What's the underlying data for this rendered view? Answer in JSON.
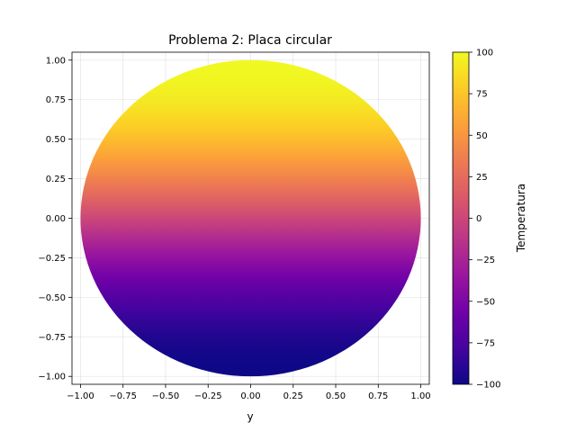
{
  "chart_data": {
    "type": "heatmap",
    "title": "Problema 2: Placa circular",
    "xlabel": "y",
    "ylabel": "",
    "xlim": [
      -1.05,
      1.05
    ],
    "ylim": [
      -1.05,
      1.05
    ],
    "x_ticks": [
      -1.0,
      -0.75,
      -0.5,
      -0.25,
      0.0,
      0.25,
      0.5,
      0.75,
      1.0
    ],
    "x_tick_labels": [
      "−1.00",
      "−0.75",
      "−0.50",
      "−0.25",
      "0.00",
      "0.25",
      "0.50",
      "0.75",
      "1.00"
    ],
    "y_ticks": [
      -1.0,
      -0.75,
      -0.5,
      -0.25,
      0.0,
      0.25,
      0.5,
      0.75,
      1.0
    ],
    "y_tick_labels": [
      "−1.00",
      "−0.75",
      "−0.50",
      "−0.25",
      "0.00",
      "0.25",
      "0.50",
      "0.75",
      "1.00"
    ],
    "grid": true,
    "domain": {
      "shape": "disk",
      "center": [
        0,
        0
      ],
      "radius": 1.0
    },
    "field": {
      "description_formula": "T = 100 · sin(pi/2 · y_vertical)",
      "amplitude": 100,
      "samples_vertical_coordinate": [
        -1.0,
        -0.75,
        -0.5,
        -0.25,
        0.0,
        0.25,
        0.5,
        0.75,
        1.0
      ],
      "samples_temperature": [
        -100,
        -92.4,
        -70.7,
        -38.3,
        0,
        38.3,
        70.7,
        92.4,
        100
      ]
    },
    "colormap": "plasma",
    "colormap_stops": [
      "#0d0887",
      "#46039f",
      "#7201a8",
      "#9c179e",
      "#bd3786",
      "#d8576b",
      "#ed7953",
      "#fb9f3a",
      "#fdca26",
      "#f0f921"
    ],
    "colorbar": {
      "label": "Temperatura",
      "vmin": -100,
      "vmax": 100,
      "ticks": [
        -100,
        -75,
        -50,
        -25,
        0,
        25,
        50,
        75,
        100
      ],
      "tick_labels": [
        "−100",
        "−75",
        "−50",
        "−25",
        "0",
        "25",
        "50",
        "75",
        "100"
      ]
    }
  }
}
